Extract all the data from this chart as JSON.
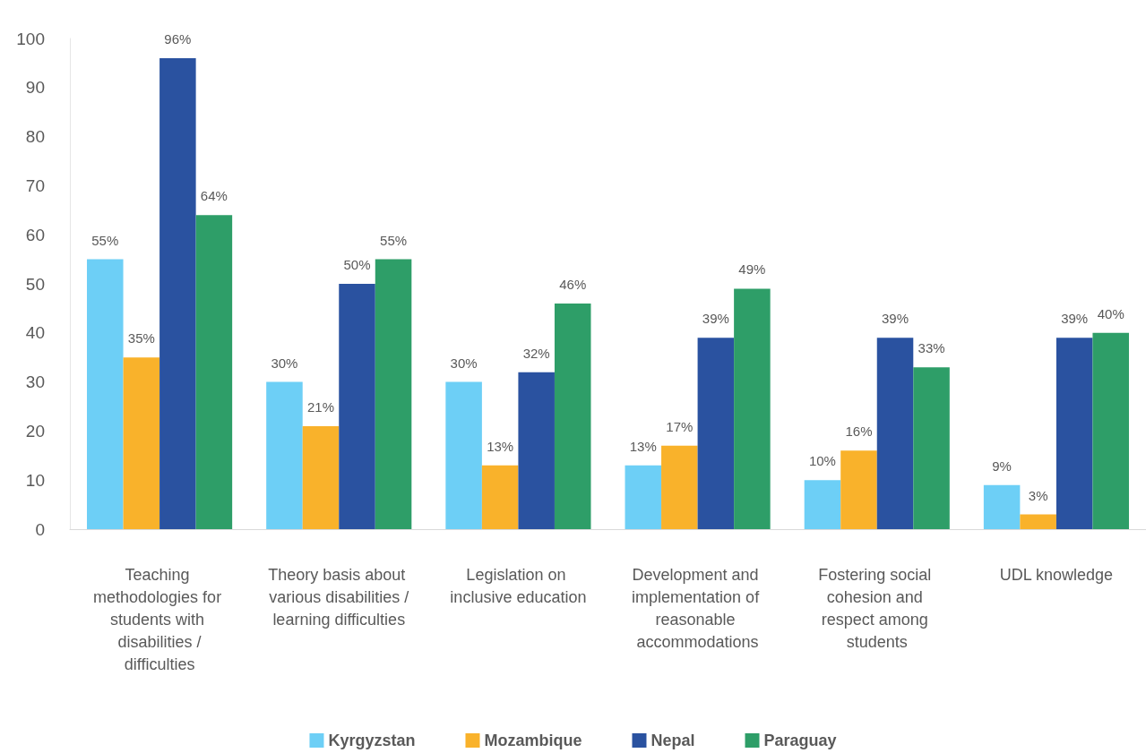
{
  "chart_data": {
    "type": "bar",
    "categories": [
      "Teaching methodologies for students with disabilities /difficulties",
      "Theory basis about various disabilities /learning difficulties",
      "Legislation on inclusive education",
      "Development and implementation of reasonable accommodations",
      "Fostering social cohesion and respect among students",
      "UDL knowledge"
    ],
    "series": [
      {
        "name": "Kyrgyzstan",
        "color": "#6dcff6",
        "values": [
          55,
          30,
          30,
          13,
          10,
          9
        ],
        "value_labels": [
          "55%",
          "30%",
          "30%",
          "13%",
          "10%",
          "9%"
        ]
      },
      {
        "name": "Mozambique",
        "color": "#f9b22b",
        "values": [
          35,
          21,
          13,
          17,
          16,
          3
        ],
        "value_labels": [
          "35%",
          "21%",
          "13%",
          "17%",
          "16%",
          "3%"
        ]
      },
      {
        "name": "Nepal",
        "color": "#2a52a0",
        "values": [
          96,
          50,
          32,
          39,
          39,
          39
        ],
        "value_labels": [
          "96%",
          "50%",
          "32%",
          "39%",
          "39%",
          "39%"
        ]
      },
      {
        "name": "Paraguay",
        "color": "#2e9e68",
        "values": [
          64,
          55,
          46,
          49,
          33,
          40
        ],
        "value_labels": [
          "64%",
          "55%",
          "46%",
          "49%",
          "33%",
          "40%"
        ]
      }
    ],
    "ylim": [
      0,
      100
    ],
    "yticks": [
      0,
      10,
      20,
      30,
      40,
      50,
      60,
      70,
      80,
      90,
      100
    ],
    "grid": false,
    "legend": "bottom"
  }
}
